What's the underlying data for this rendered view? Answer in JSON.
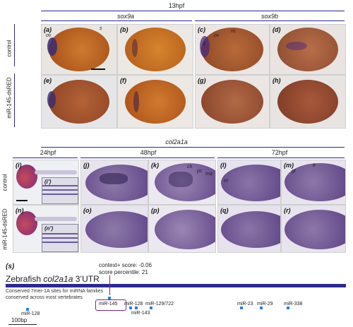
{
  "colors": {
    "accent_line": "#2a2a8a",
    "embryo_brown": "#b0581c",
    "stain_purple": "#4a2a7a",
    "site_blue": "#2a7fd6",
    "utr_bar": "#2b2b8c"
  },
  "top": {
    "stage": "13hpf",
    "gene_left": "sox9a",
    "gene_right": "sox9b",
    "row_labels": [
      "control",
      "miR-145-dsRED"
    ],
    "panels": [
      "(a)",
      "(b)",
      "(c)",
      "(d)",
      "(e)",
      "(f)",
      "(g)",
      "(h)"
    ],
    "annotations": {
      "ov": "ov",
      "s": "s",
      "nc": "nc",
      "d": "d"
    }
  },
  "middle": {
    "gene": "col2a1a",
    "stages": [
      "24hpf",
      "48hpf",
      "72hpf"
    ],
    "row_labels": [
      "control",
      "miR-145-dsRED"
    ],
    "panels_row1": [
      "(i)",
      "(j)",
      "(k)",
      "(l)",
      "(m)"
    ],
    "panels_row2": [
      "(n)",
      "(o)",
      "(p)",
      "(q)",
      "(r)"
    ],
    "inset_labels": [
      "(i')",
      "(n')"
    ],
    "annotations": {
      "ch": "ch",
      "pc": "pc",
      "ma": "ma",
      "et": "et",
      "gt": "gt",
      "tr": "tr"
    }
  },
  "bottom": {
    "panel_label": "(s)",
    "title_prefix": "Zebrafish ",
    "title_gene": "col2a1a",
    "title_suffix": " 3’UTR",
    "context_score": "context+ score: -0.06",
    "score_percentile": "score percentile: 21",
    "conserved_line1": "Conserved 7mer-1A sites for miRNA families",
    "conserved_line2": "conserved across most vertebrates",
    "scale": "100bp",
    "mirnas": [
      "miR-128",
      "miR-145",
      "miR-128",
      "miR-143",
      "miR-129/722",
      "miR-23",
      "miR-29",
      "miR-338"
    ]
  }
}
